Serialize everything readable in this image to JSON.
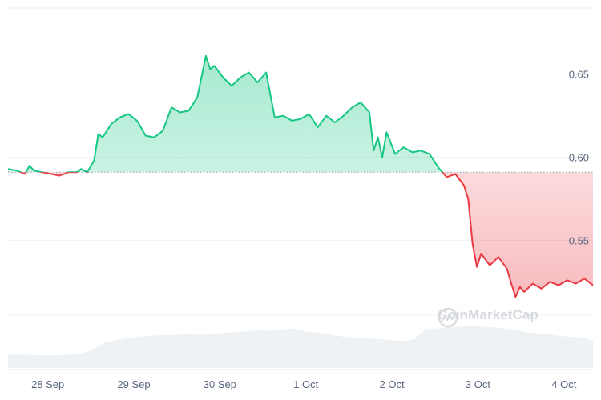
{
  "chart_data": {
    "type": "area",
    "title": "",
    "xlabel": "",
    "ylabel": "",
    "x_ticks": [
      "28 Sep",
      "29 Sep",
      "30 Sep",
      "1 Oct",
      "2 Oct",
      "3 Oct",
      "4 Oct"
    ],
    "y_ticks": [
      "0.55",
      "0.60",
      "0.65"
    ],
    "ylim": [
      0.505,
      0.685
    ],
    "baseline": 0.591,
    "x_range_days": [
      27.5,
      34.3
    ],
    "grid": true,
    "series": [
      {
        "values": [
          [
            27.5,
            0.593
          ],
          [
            27.6,
            0.592
          ],
          [
            27.7,
            0.59
          ],
          [
            27.75,
            0.595
          ],
          [
            27.8,
            0.592
          ],
          [
            27.9,
            0.591
          ],
          [
            28.0,
            0.59
          ],
          [
            28.1,
            0.589
          ],
          [
            28.2,
            0.591
          ],
          [
            28.3,
            0.591
          ],
          [
            28.35,
            0.593
          ],
          [
            28.42,
            0.591
          ],
          [
            28.5,
            0.598
          ],
          [
            28.55,
            0.614
          ],
          [
            28.6,
            0.612
          ],
          [
            28.7,
            0.62
          ],
          [
            28.8,
            0.624
          ],
          [
            28.9,
            0.626
          ],
          [
            29.0,
            0.622
          ],
          [
            29.1,
            0.613
          ],
          [
            29.2,
            0.612
          ],
          [
            29.3,
            0.616
          ],
          [
            29.4,
            0.63
          ],
          [
            29.5,
            0.627
          ],
          [
            29.6,
            0.628
          ],
          [
            29.7,
            0.636
          ],
          [
            29.8,
            0.661
          ],
          [
            29.85,
            0.653
          ],
          [
            29.9,
            0.655
          ],
          [
            30.0,
            0.648
          ],
          [
            30.1,
            0.643
          ],
          [
            30.2,
            0.648
          ],
          [
            30.3,
            0.651
          ],
          [
            30.4,
            0.645
          ],
          [
            30.5,
            0.651
          ],
          [
            30.6,
            0.624
          ],
          [
            30.7,
            0.625
          ],
          [
            30.8,
            0.622
          ],
          [
            30.9,
            0.623
          ],
          [
            31.0,
            0.626
          ],
          [
            31.1,
            0.618
          ],
          [
            31.2,
            0.625
          ],
          [
            31.3,
            0.621
          ],
          [
            31.4,
            0.625
          ],
          [
            31.5,
            0.63
          ],
          [
            31.6,
            0.633
          ],
          [
            31.7,
            0.627
          ],
          [
            31.75,
            0.604
          ],
          [
            31.8,
            0.612
          ],
          [
            31.85,
            0.6
          ],
          [
            31.9,
            0.615
          ],
          [
            32.0,
            0.602
          ],
          [
            32.1,
            0.606
          ],
          [
            32.2,
            0.603
          ],
          [
            32.3,
            0.604
          ],
          [
            32.4,
            0.602
          ],
          [
            32.5,
            0.594
          ],
          [
            32.6,
            0.588
          ],
          [
            32.7,
            0.59
          ],
          [
            32.8,
            0.583
          ],
          [
            32.85,
            0.575
          ],
          [
            32.9,
            0.548
          ],
          [
            32.95,
            0.534
          ],
          [
            33.0,
            0.542
          ],
          [
            33.1,
            0.535
          ],
          [
            33.2,
            0.54
          ],
          [
            33.3,
            0.533
          ],
          [
            33.35,
            0.524
          ],
          [
            33.4,
            0.516
          ],
          [
            33.45,
            0.522
          ],
          [
            33.5,
            0.519
          ],
          [
            33.6,
            0.524
          ],
          [
            33.7,
            0.521
          ],
          [
            33.8,
            0.525
          ],
          [
            33.9,
            0.523
          ],
          [
            34.0,
            0.526
          ],
          [
            34.1,
            0.524
          ],
          [
            34.2,
            0.527
          ],
          [
            34.3,
            0.523
          ]
        ]
      }
    ],
    "volume": [
      0.3,
      0.3,
      0.29,
      0.28,
      0.28,
      0.3,
      0.31,
      0.4,
      0.55,
      0.62,
      0.66,
      0.7,
      0.72,
      0.74,
      0.73,
      0.76,
      0.74,
      0.75,
      0.78,
      0.8,
      0.82,
      0.84,
      0.83,
      0.86,
      0.88,
      0.81,
      0.79,
      0.75,
      0.7,
      0.68,
      0.66,
      0.65,
      0.62,
      0.6,
      0.64,
      0.86,
      0.89,
      0.91,
      0.92,
      0.93,
      0.92,
      0.9,
      0.86,
      0.82,
      0.78,
      0.76,
      0.72,
      0.7,
      0.68,
      0.62
    ],
    "colors": {
      "up_line": "#16c784",
      "down_line": "#ea3943",
      "grid": "#eff2f5",
      "baseline": "#a1a7bb",
      "tick_text": "#58667e",
      "volume": "#eff2f5"
    }
  },
  "watermark": {
    "text": "CoinMarketCap",
    "icon": "coinmarketcap-logo-icon"
  }
}
